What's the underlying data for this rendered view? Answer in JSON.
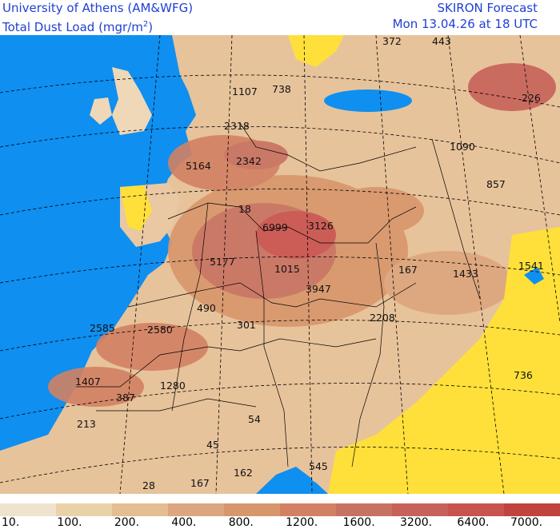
{
  "header": {
    "line1_left": "University of Athens (AM&WFG)",
    "line2_left": "Total Dust Load (mgr/m",
    "line2_left_sup": "2",
    "line2_left_end": ")",
    "line1_right": "SKIRON Forecast",
    "line2_right": "Mon 13.04.26 at 18 UTC"
  },
  "colors": {
    "sea": "#0f8ff0",
    "land_none": "#ffe03a",
    "border": "#000000",
    "grid": "#000000",
    "header_text": "#1f3fd6"
  },
  "map_labels": [
    {
      "text": "372"
    },
    {
      "text": "443"
    },
    {
      "text": "1107"
    },
    {
      "text": "738"
    },
    {
      "text": "226"
    },
    {
      "text": "2318"
    },
    {
      "text": "1090"
    },
    {
      "text": "5164"
    },
    {
      "text": "2342"
    },
    {
      "text": "857"
    },
    {
      "text": "18"
    },
    {
      "text": "6999"
    },
    {
      "text": "3126"
    },
    {
      "text": "5177"
    },
    {
      "text": "1015"
    },
    {
      "text": "167"
    },
    {
      "text": "1433"
    },
    {
      "text": "1541"
    },
    {
      "text": "3947"
    },
    {
      "text": "490"
    },
    {
      "text": "2208"
    },
    {
      "text": "2585"
    },
    {
      "text": "2580"
    },
    {
      "text": "301"
    },
    {
      "text": "736"
    },
    {
      "text": "1407"
    },
    {
      "text": "387"
    },
    {
      "text": "1280"
    },
    {
      "text": "213"
    },
    {
      "text": "54"
    },
    {
      "text": "45"
    },
    {
      "text": "162"
    },
    {
      "text": "545"
    },
    {
      "text": "28"
    },
    {
      "text": "167"
    }
  ],
  "legend": {
    "colors": [
      "#efe3cf",
      "#ead2a8",
      "#e4bd90",
      "#dca67e",
      "#d8966c",
      "#d28163",
      "#c87262",
      "#c7625a",
      "#c9534f",
      "#c1433e"
    ],
    "ticks": [
      "10.",
      "100.",
      "200.",
      "400.",
      "800.",
      "1200.",
      "1600.",
      "3200.",
      "6400.",
      "7000."
    ]
  }
}
